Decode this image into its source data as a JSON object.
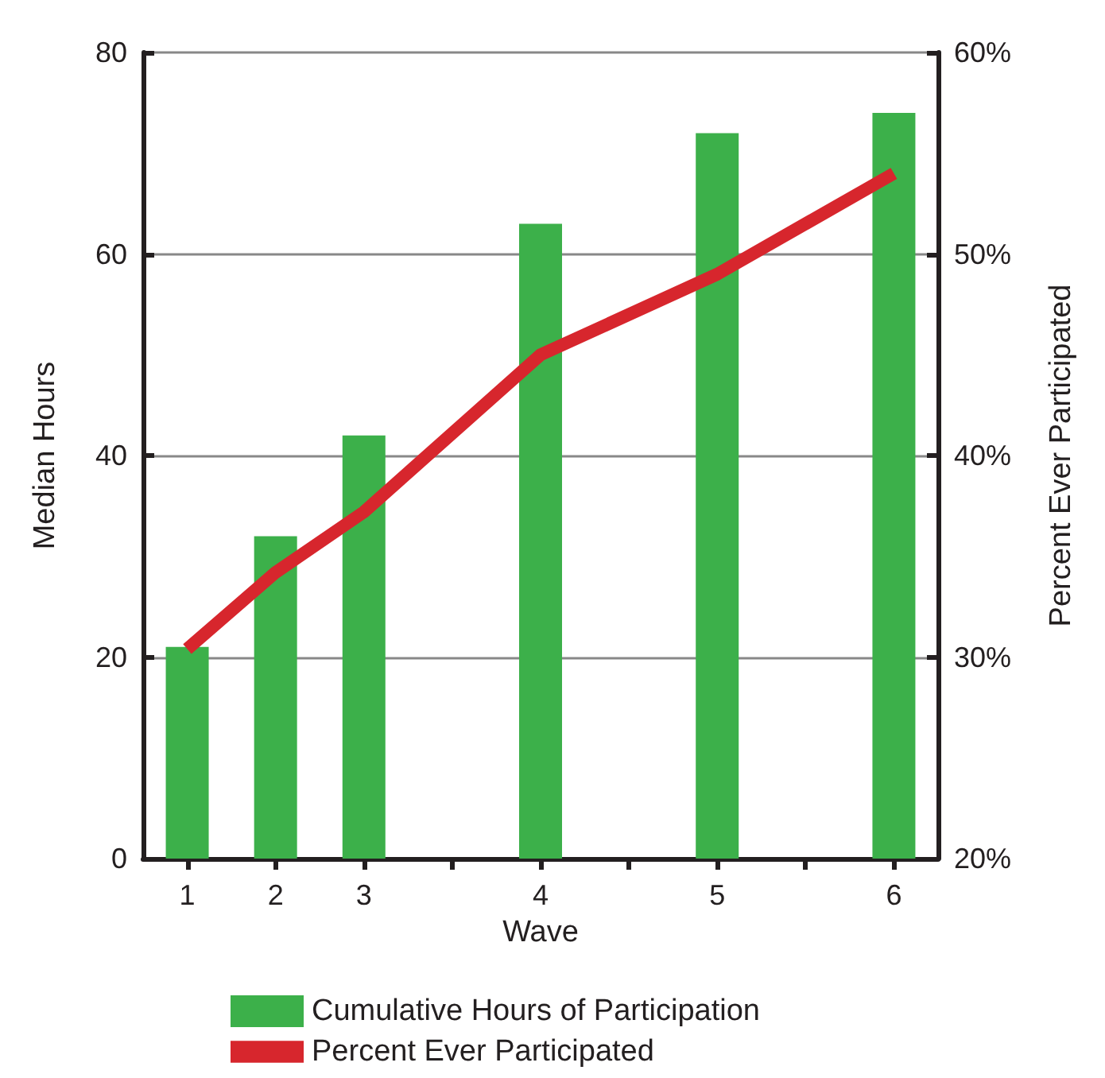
{
  "chart_data": {
    "type": "bar",
    "xlabel": "Wave",
    "ylabel": "Median Hours",
    "y2label": "Percent Ever Participated",
    "categories": [
      "1",
      "2",
      "3",
      null,
      "4",
      null,
      "5",
      null,
      "6"
    ],
    "ylim": [
      0,
      80
    ],
    "yticks": [
      0,
      20,
      40,
      60,
      80
    ],
    "y2lim": [
      20,
      60
    ],
    "y2ticks": [
      {
        "value": 20,
        "label": "20%"
      },
      {
        "value": 30,
        "label": "30%"
      },
      {
        "value": 40,
        "label": "40%"
      },
      {
        "value": 50,
        "label": "50%"
      },
      {
        "value": 60,
        "label": "60%"
      }
    ],
    "series": [
      {
        "name": "Cumulative Hours of Participation",
        "color": "#3cb04a",
        "values": [
          21,
          32,
          42,
          null,
          63,
          null,
          72,
          null,
          74
        ]
      },
      {
        "name": "Percent Ever Participated",
        "type": "line",
        "axis": "y2",
        "color": "#d7262d",
        "x": [
          "1",
          "2",
          "3",
          "4",
          "5",
          "6"
        ],
        "values": [
          30.4,
          34.2,
          37.2,
          45,
          49,
          54
        ]
      }
    ],
    "grid": "y",
    "legend": "bottom",
    "marker": "none",
    "line_style": "solid"
  }
}
